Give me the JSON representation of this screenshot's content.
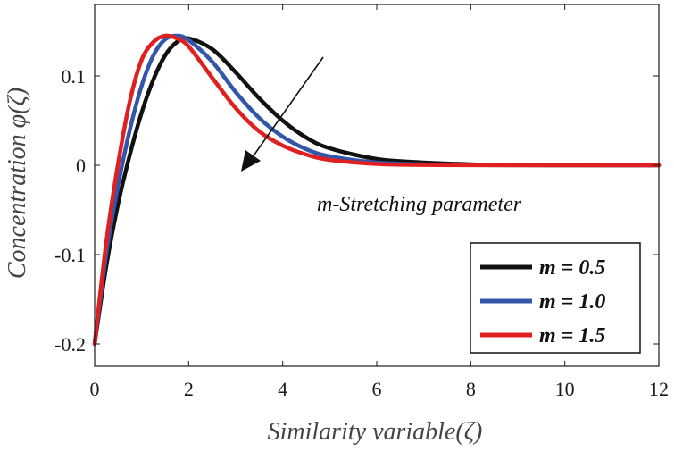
{
  "chart_data": {
    "type": "line",
    "title": "",
    "xlabel": "Similarity variable(ζ)",
    "ylabel": "Concentration φ(ζ)",
    "xlim": [
      0,
      12
    ],
    "ylim": [
      -0.225,
      0.18
    ],
    "xticks": [
      0,
      2,
      4,
      6,
      8,
      10,
      12
    ],
    "yticks": [
      -0.2,
      -0.1,
      0,
      0.1
    ],
    "ytick_labels": [
      "-0.2",
      "-0.1",
      "0",
      "0.1"
    ],
    "xtick_labels": [
      "0",
      "2",
      "4",
      "6",
      "8",
      "10",
      "12"
    ],
    "grid": false,
    "legend_position": "bottom-right",
    "annotation": "m-Stretching parameter",
    "x": [
      0,
      0.25,
      0.5,
      0.75,
      1.0,
      1.25,
      1.5,
      1.75,
      2.0,
      2.5,
      3.0,
      3.5,
      4.0,
      4.5,
      5.0,
      6.0,
      7.0,
      8.0,
      9.0,
      10.0,
      11.0,
      12.0
    ],
    "series": [
      {
        "name": "m = 0.5",
        "color": "#111111",
        "values": [
          -0.2,
          -0.112,
          -0.043,
          0.012,
          0.059,
          0.096,
          0.123,
          0.138,
          0.142,
          0.13,
          0.104,
          0.075,
          0.05,
          0.031,
          0.019,
          0.007,
          0.003,
          0.001,
          0.0003,
          0.0001,
          0.0,
          0.0
        ]
      },
      {
        "name": "m = 1.0",
        "color": "#3355aa",
        "values": [
          -0.2,
          -0.098,
          -0.022,
          0.04,
          0.089,
          0.123,
          0.141,
          0.145,
          0.14,
          0.116,
          0.082,
          0.053,
          0.032,
          0.018,
          0.01,
          0.003,
          0.001,
          0.0003,
          0.0001,
          0.0,
          0.0,
          0.0
        ]
      },
      {
        "name": "m = 1.5",
        "color": "#e02020",
        "values": [
          -0.2,
          -0.085,
          0.002,
          0.072,
          0.118,
          0.138,
          0.145,
          0.142,
          0.133,
          0.098,
          0.064,
          0.038,
          0.022,
          0.012,
          0.006,
          0.0015,
          0.0004,
          0.0001,
          0.0,
          0.0,
          0.0,
          0.0
        ]
      }
    ]
  }
}
